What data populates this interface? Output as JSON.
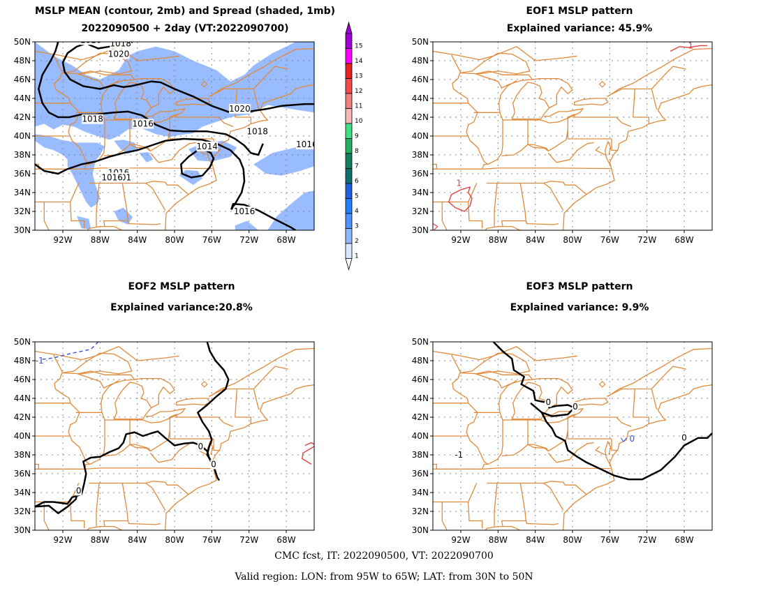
{
  "panels": [
    {
      "title_line1": "MSLP MEAN (contour, 2mb) and Spread (shaded, 1mb)",
      "title_line2": "2022090500 + 2day (VT:2022090700)",
      "contour_labels": [
        "1016",
        "1018",
        "1020",
        "1018",
        "1016",
        "1020",
        "1018",
        "1014",
        "1016",
        "1016",
        "1016",
        "101",
        "1016"
      ]
    },
    {
      "title_line1": "EOF1 MSLP pattern",
      "title_line2": "Explained variance: 45.9%",
      "contour_labels": [
        "1",
        "1"
      ]
    },
    {
      "title_line1": "EOF2 MSLP pattern",
      "title_line2": "Explained variance:20.8%",
      "contour_labels": [
        "-1",
        "0",
        "0",
        "0"
      ]
    },
    {
      "title_line1": "EOF3 MSLP pattern",
      "title_line2": "Explained variance: 9.9%",
      "contour_labels": [
        "0",
        "0",
        "0",
        "-1",
        "0"
      ]
    }
  ],
  "axes": {
    "lat_labels": [
      "50N",
      "48N",
      "46N",
      "44N",
      "42N",
      "40N",
      "38N",
      "36N",
      "34N",
      "32N",
      "30N"
    ],
    "lon_labels": [
      "92W",
      "88W",
      "84W",
      "80W",
      "76W",
      "72W",
      "68W"
    ]
  },
  "colorbar": {
    "labels": [
      "15",
      "14",
      "13",
      "12",
      "11",
      "10",
      "9",
      "8",
      "7",
      "6",
      "5",
      "4",
      "3",
      "2",
      "1"
    ],
    "colors": [
      "#a000d0",
      "#ff00ff",
      "#e82020",
      "#f04a4a",
      "#f08080",
      "#f8b8b8",
      "#40e080",
      "#20b060",
      "#108060",
      "#107070",
      "#2060e0",
      "#2080ff",
      "#5090ff",
      "#90b8ff",
      "#d8e8ff"
    ]
  },
  "colors": {
    "coast": "#e08a3a",
    "spread_fill": "#99bbff",
    "contour": "#000000",
    "positive": "#e04040",
    "negative": "#3050e0"
  },
  "footer": {
    "line1": "CMC fcst, IT: 2022090500, VT: 2022090700",
    "line2": "Valid region: LON: from 95W to 65W; LAT: from 30N to 50N"
  }
}
